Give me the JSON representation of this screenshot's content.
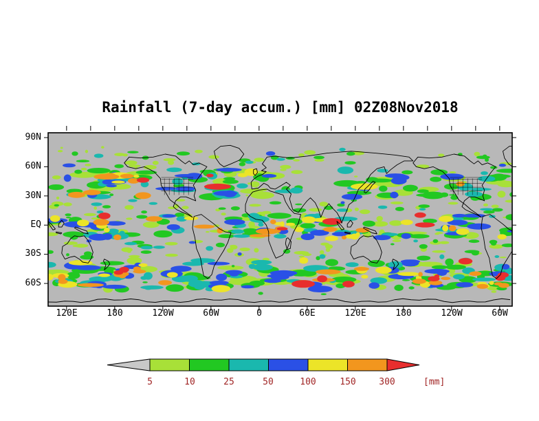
{
  "title": "Rainfall (7-day accum.) [mm] 02Z08Nov2018",
  "map": {
    "background": "#b8b8b8",
    "coastline_color": "#000000",
    "lat_ticks": [
      "90N",
      "60N",
      "30N",
      "EQ",
      "30S",
      "60S"
    ],
    "lon_ticks": [
      "120E",
      "180",
      "120W",
      "60W",
      "0",
      "60E",
      "120E",
      "180",
      "120W",
      "60W"
    ]
  },
  "colorbar": {
    "levels": [
      "5",
      "10",
      "25",
      "50",
      "100",
      "150",
      "300"
    ],
    "unit_label": "[mm]",
    "label_color": "#a12626",
    "interval_colors": [
      "#c8c8c8",
      "#a8e038",
      "#22c822",
      "#1ab8ae",
      "#2a50e6",
      "#ece428",
      "#f2961e",
      "#e82e2e"
    ]
  },
  "chart_data": {
    "type": "heatmap",
    "title": "Rainfall (7-day accum.) [mm] 02Z08Nov2018",
    "variable": "Rainfall, 7-day accumulation",
    "units": "mm",
    "valid_time_label": "02Z08Nov2018",
    "projection": "global lat-lon, longitude wraps past 360 degrees",
    "x_axis": {
      "tick_labels": [
        "120E",
        "180",
        "120W",
        "60W",
        "0",
        "60E",
        "120E",
        "180",
        "120W",
        "60W"
      ]
    },
    "y_axis": {
      "tick_labels": [
        "90N",
        "60N",
        "30N",
        "EQ",
        "30S",
        "60S"
      ]
    },
    "legend": {
      "position": "bottom",
      "style": "discrete level colorbar with open-ended arrow ends",
      "levels": [
        5,
        10,
        25,
        50,
        100,
        150,
        300
      ],
      "interval_colors": [
        "#c8c8c8",
        "#a8e038",
        "#22c822",
        "#1ab8ae",
        "#2a50e6",
        "#ece428",
        "#f2961e",
        "#e82e2e"
      ],
      "open_ended_low": true,
      "open_ended_high": true
    },
    "no_data_color": "#b8b8b8",
    "grid": "off"
  }
}
